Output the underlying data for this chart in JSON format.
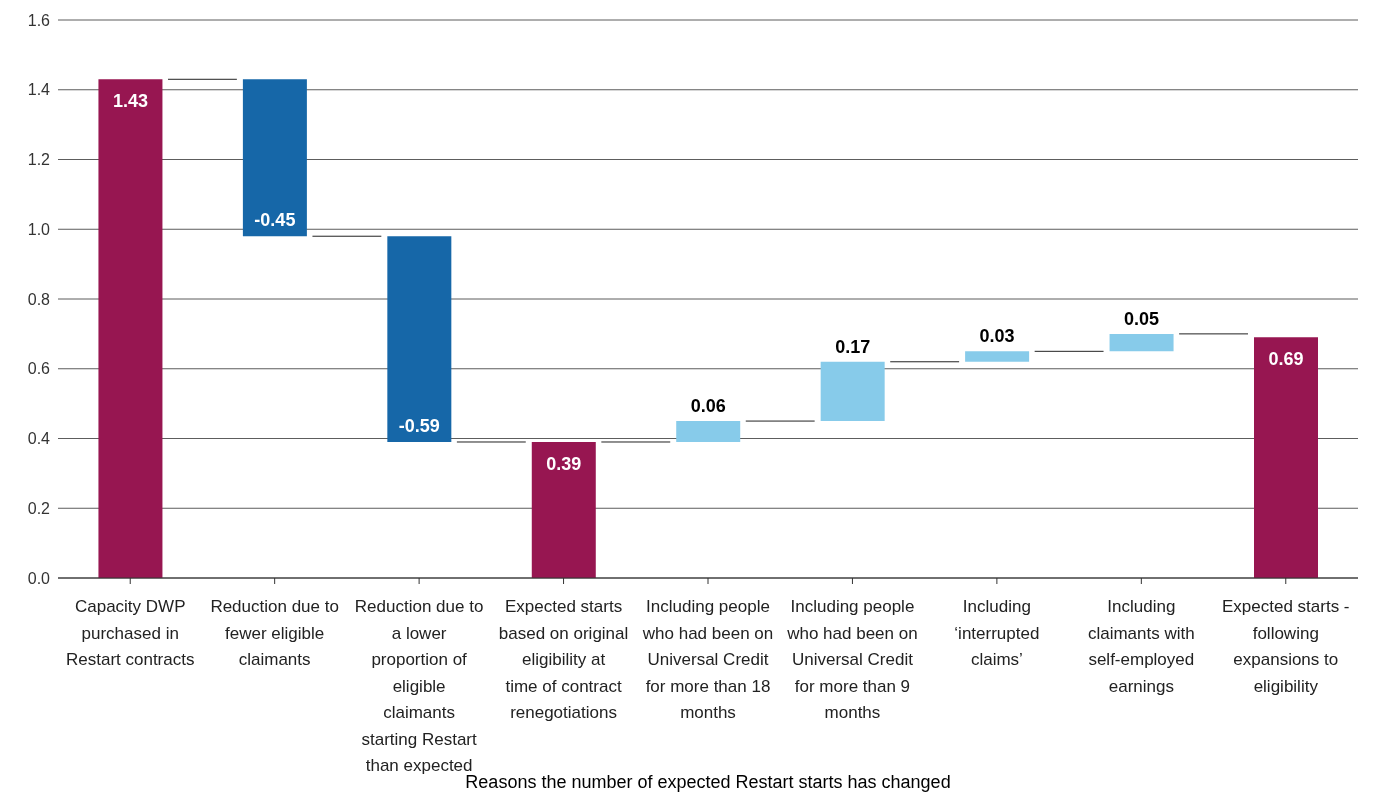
{
  "chart_data": {
    "type": "bar",
    "xlabel": "Reasons the number of expected Restart starts has changed",
    "categories": [
      "Capacity DWP purchased in Restart contracts",
      "Reduction due to fewer eligible claimants",
      "Reduction due to a lower proportion of eligible claimants starting Restart than expected",
      "Expected starts based on original eligibility at time of contract renegotiations",
      "Including people who had been on Universal Credit for more than 18 months",
      "Including people who had been on Universal Credit for more than 9 months",
      "Including ‘interrupted claims’",
      "Including claimants with self-employed earnings",
      "Expected starts - following expansions to eligibility"
    ],
    "values": [
      1.43,
      -0.45,
      -0.59,
      0.39,
      0.06,
      0.17,
      0.03,
      0.05,
      0.69
    ],
    "base": [
      0,
      1.43,
      0.98,
      0,
      0.39,
      0.45,
      0.62,
      0.65,
      0
    ],
    "colors": [
      "#971651",
      "#1667a8",
      "#1667a8",
      "#971651",
      "#87cbea",
      "#87cbea",
      "#87cbea",
      "#87cbea",
      "#971651"
    ],
    "ylim": [
      0,
      1.6
    ],
    "yticks": [
      {
        "value": 0,
        "label": "0.0"
      },
      0.2,
      0.4,
      0.6,
      0.8,
      {
        "value": 1,
        "label": "1.0"
      },
      1.2,
      1.4,
      1.6
    ],
    "grid": "y",
    "data_labels": true
  }
}
